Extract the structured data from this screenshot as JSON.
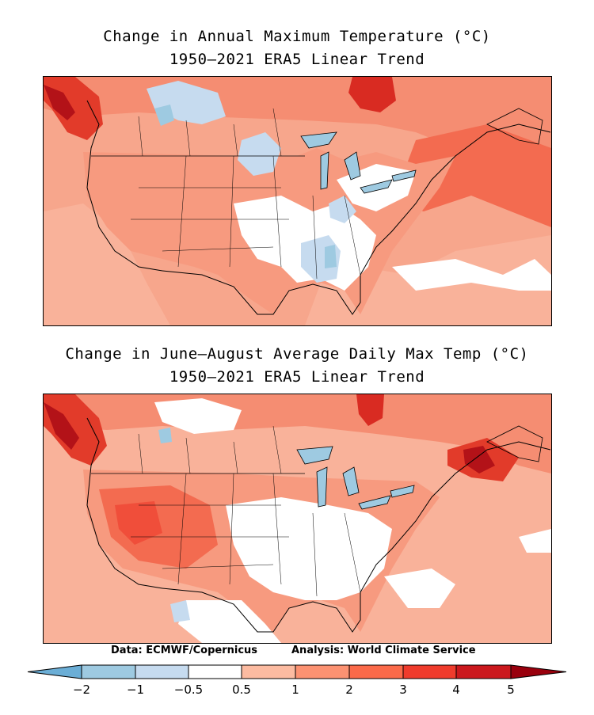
{
  "maps": [
    {
      "title_line1": "Change in Annual Maximum Temperature (°C)",
      "title_line2": "1950–2021 ERA5 Linear Trend"
    },
    {
      "title_line1": "Change in June–August Average Daily Max Temp (°C)",
      "title_line2": "1950–2021 ERA5 Linear Trend"
    }
  ],
  "credits": {
    "data": "Data: ECMWF/Copernicus",
    "analysis": "Analysis: World Climate Service"
  },
  "colorbar": {
    "ticks": [
      "−2",
      "−1",
      "−0.5",
      "0.5",
      "1",
      "2",
      "3",
      "4",
      "5"
    ],
    "colors": [
      "#6baed6",
      "#9ecae1",
      "#c6dbef",
      "#ffffff",
      "#fcbba1",
      "#fc9272",
      "#fb6a4a",
      "#ef3b2c",
      "#cb181d",
      "#99000d"
    ]
  }
}
